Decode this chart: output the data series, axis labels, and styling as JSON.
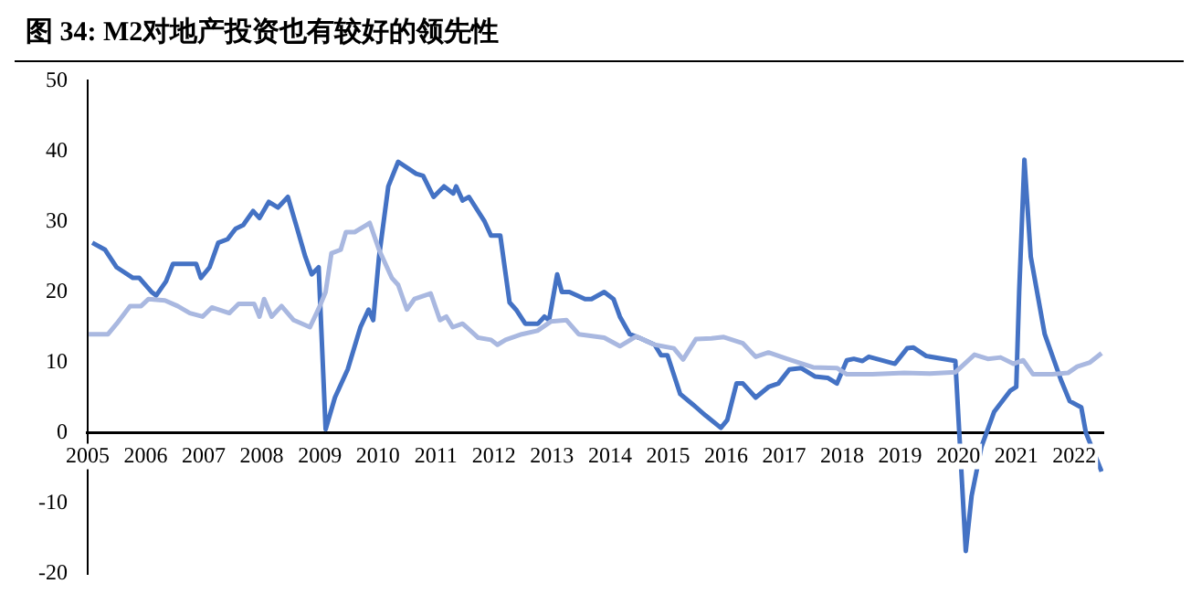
{
  "chart_data": {
    "type": "line",
    "title": "图 34: M2对地产投资也有较好的领先性",
    "xlim": [
      2005,
      2022.5
    ],
    "xticks": [
      2005,
      2006,
      2007,
      2008,
      2009,
      2010,
      2011,
      2012,
      2013,
      2014,
      2015,
      2016,
      2017,
      2018,
      2019,
      2020,
      2021,
      2022
    ],
    "ylim": [
      -20,
      50
    ],
    "yticks": [
      -20,
      -10,
      0,
      10,
      20,
      30,
      40,
      50
    ],
    "grid": false,
    "legend": false,
    "marker": "none",
    "line_style": "solid",
    "series": [
      {
        "color": "#a9b8e0",
        "x": [
          2005.02,
          2005.35,
          2005.5,
          2005.73,
          2005.92,
          2006.05,
          2006.33,
          2006.55,
          2006.76,
          2006.98,
          2007.14,
          2007.44,
          2007.6,
          2007.87,
          2007.96,
          2008.04,
          2008.17,
          2008.34,
          2008.55,
          2008.83,
          2009.0,
          2009.1,
          2009.2,
          2009.36,
          2009.45,
          2009.6,
          2009.8,
          2009.86,
          2010.02,
          2010.24,
          2010.35,
          2010.5,
          2010.63,
          2010.91,
          2011.07,
          2011.18,
          2011.29,
          2011.46,
          2011.73,
          2011.95,
          2012.06,
          2012.2,
          2012.48,
          2012.75,
          2012.98,
          2013.25,
          2013.46,
          2013.9,
          2014.17,
          2014.45,
          2014.77,
          2015.1,
          2015.26,
          2015.48,
          2015.75,
          2015.96,
          2016.29,
          2016.51,
          2016.73,
          2017.05,
          2017.5,
          2017.91,
          2018.08,
          2018.52,
          2019.07,
          2019.51,
          2019.95,
          2020.28,
          2020.51,
          2020.73,
          2020.95,
          2021.12,
          2021.29,
          2021.62,
          2021.89,
          2022.05,
          2022.27,
          2022.47
        ],
        "values": [
          14,
          14,
          15.5,
          18,
          18,
          19,
          18.8,
          18,
          17,
          16.5,
          17.8,
          17,
          18.3,
          18.3,
          16.5,
          19,
          16.5,
          18,
          16,
          15,
          18,
          20,
          25.5,
          26,
          28.5,
          28.5,
          29.5,
          29.8,
          26,
          22,
          21,
          17.5,
          19,
          19.8,
          16,
          16.5,
          15,
          15.5,
          13.5,
          13.2,
          12.5,
          13.2,
          14,
          14.5,
          15.8,
          16,
          14,
          13.5,
          12.3,
          13.7,
          12.5,
          12,
          10.4,
          13.3,
          13.4,
          13.6,
          12.7,
          10.8,
          11.4,
          10.5,
          9.3,
          9.2,
          8.3,
          8.3,
          8.5,
          8.4,
          8.6,
          11.1,
          10.5,
          10.7,
          9.8,
          10.3,
          8.3,
          8.3,
          8.5,
          9.4,
          10,
          11.3
        ]
      },
      {
        "color": "#4472c4",
        "x": [
          2005.08,
          2005.3,
          2005.5,
          2005.78,
          2005.89,
          2006.1,
          2006.18,
          2006.35,
          2006.47,
          2006.71,
          2006.87,
          2006.95,
          2007.1,
          2007.25,
          2007.41,
          2007.55,
          2007.68,
          2007.85,
          2007.96,
          2008.12,
          2008.28,
          2008.45,
          2008.61,
          2008.75,
          2008.86,
          2008.98,
          2009.1,
          2009.26,
          2009.48,
          2009.7,
          2009.84,
          2009.92,
          2010.02,
          2010.18,
          2010.35,
          2010.66,
          2010.78,
          2010.96,
          2011.14,
          2011.3,
          2011.35,
          2011.46,
          2011.57,
          2011.84,
          2011.95,
          2012.11,
          2012.27,
          2012.38,
          2012.54,
          2012.76,
          2012.87,
          2012.95,
          2013.09,
          2013.17,
          2013.3,
          2013.57,
          2013.68,
          2013.9,
          2014.06,
          2014.17,
          2014.34,
          2014.5,
          2014.77,
          2014.88,
          2014.99,
          2015.21,
          2015.43,
          2015.64,
          2015.91,
          2016.02,
          2016.18,
          2016.29,
          2016.51,
          2016.73,
          2016.9,
          2017.09,
          2017.29,
          2017.53,
          2017.75,
          2017.91,
          2018.08,
          2018.2,
          2018.35,
          2018.46,
          2018.91,
          2019.12,
          2019.23,
          2019.45,
          2019.89,
          2019.95,
          2020.13,
          2020.23,
          2020.4,
          2020.62,
          2020.9,
          2021.0,
          2021.05,
          2021.14,
          2021.25,
          2021.49,
          2021.77,
          2021.92,
          2022.12,
          2022.2,
          2022.47
        ],
        "values": [
          27,
          26,
          23.5,
          22,
          22,
          20,
          19.5,
          21.5,
          24,
          24,
          24,
          22,
          23.5,
          27,
          27.5,
          29,
          29.5,
          31.5,
          30.5,
          32.8,
          32,
          33.5,
          29,
          25,
          22.5,
          23.5,
          0.5,
          5,
          9,
          15,
          17.5,
          16,
          25,
          35,
          38.5,
          36.8,
          36.5,
          33.5,
          35,
          34,
          35,
          33,
          33.5,
          30,
          28,
          28,
          18.5,
          17.5,
          15.5,
          15.5,
          16.5,
          16,
          22.5,
          20,
          20,
          19,
          19,
          20,
          19,
          16.5,
          14,
          13.5,
          12.5,
          11,
          11,
          5.5,
          4,
          2.5,
          0.7,
          1.8,
          7,
          7,
          5,
          6.5,
          7,
          9,
          9.2,
          8,
          7.8,
          7,
          10.3,
          10.5,
          10.2,
          10.8,
          9.8,
          12,
          12.1,
          10.9,
          10.3,
          10.2,
          -16.8,
          -9,
          -2,
          3,
          6,
          6.5,
          20,
          38.8,
          25,
          14,
          7.5,
          4.5,
          3.6,
          0,
          -5.5
        ]
      }
    ]
  }
}
